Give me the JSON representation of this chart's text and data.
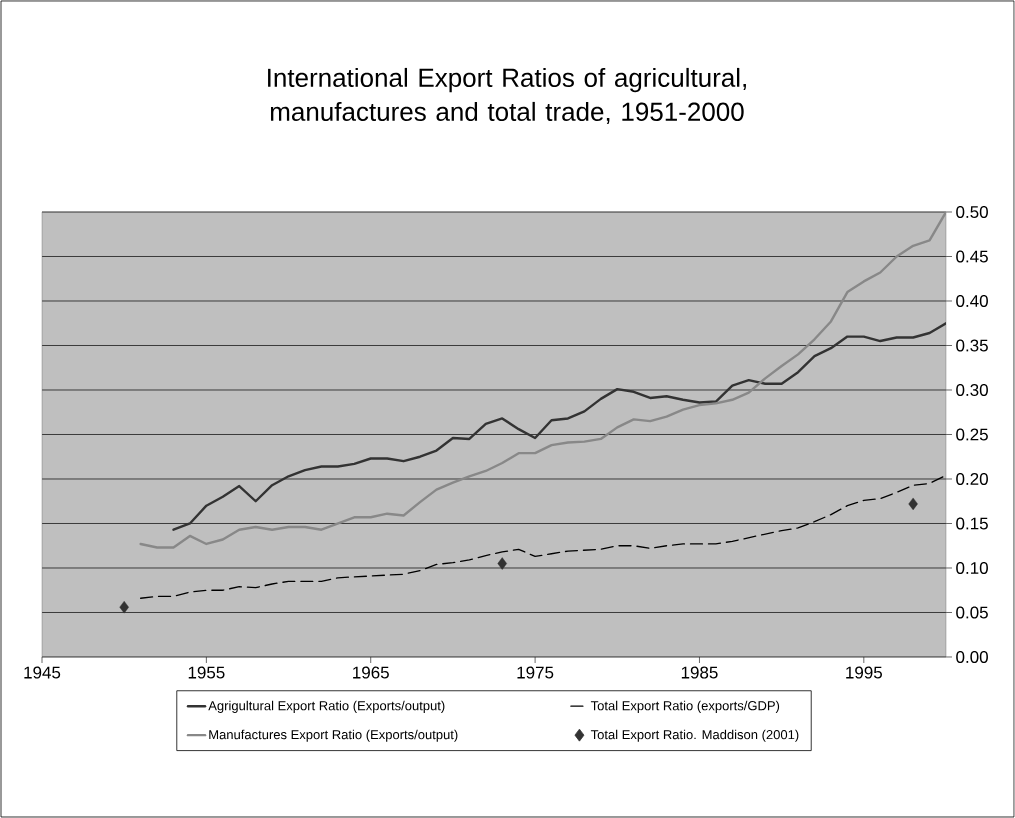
{
  "chart_data": {
    "type": "line",
    "title": "International Export Ratios of agricultural, manufactures and total trade, 1951-2000",
    "xlim": [
      1945,
      2000
    ],
    "xticks": [
      1945,
      1955,
      1965,
      1975,
      1985,
      1995
    ],
    "ylim": [
      0,
      0.5
    ],
    "yticks": [
      {
        "value": 0,
        "label": "0.00"
      },
      {
        "value": 0.05,
        "label": "0.05"
      },
      {
        "value": 0.1,
        "label": "0.10"
      },
      {
        "value": 0.15,
        "label": "0.15"
      },
      {
        "value": 0.2,
        "label": "0.20"
      },
      {
        "value": 0.25,
        "label": "0.25"
      },
      {
        "value": 0.3,
        "label": "0.30"
      },
      {
        "value": 0.35,
        "label": "0.35"
      },
      {
        "value": 0.4,
        "label": "0.40"
      },
      {
        "value": 0.45,
        "label": "0.45"
      },
      {
        "value": 0.5,
        "label": "0.50"
      }
    ],
    "grid": "y",
    "legend": "bottom",
    "series": [
      {
        "name": "Agrigultural Export Ratio (Exports/output)",
        "color": "#333333",
        "line_style": "solid",
        "x": [
          1953,
          1954,
          1955,
          1956,
          1957,
          1958,
          1959,
          1960,
          1961,
          1962,
          1963,
          1964,
          1965,
          1966,
          1967,
          1968,
          1969,
          1970,
          1971,
          1972,
          1973,
          1974,
          1975,
          1976,
          1977,
          1978,
          1979,
          1980,
          1981,
          1982,
          1983,
          1984,
          1985,
          1986,
          1987,
          1988,
          1989,
          1990,
          1991,
          1992,
          1993,
          1994,
          1995,
          1996,
          1997,
          1998,
          1999,
          2000
        ],
        "values": [
          0.143,
          0.15,
          0.17,
          0.18,
          0.192,
          0.175,
          0.193,
          0.203,
          0.21,
          0.214,
          0.214,
          0.217,
          0.223,
          0.223,
          0.22,
          0.225,
          0.232,
          0.246,
          0.245,
          0.262,
          0.268,
          0.256,
          0.246,
          0.266,
          0.268,
          0.276,
          0.29,
          0.301,
          0.298,
          0.291,
          0.293,
          0.289,
          0.286,
          0.287,
          0.305,
          0.311,
          0.307,
          0.307,
          0.32,
          0.338,
          0.347,
          0.36,
          0.36,
          0.355,
          0.359,
          0.359,
          0.364,
          0.375
        ]
      },
      {
        "name": "Total Export Ratio (exports/GDP)",
        "color": "#000000",
        "line_style": "dashed",
        "x": [
          1951,
          1952,
          1953,
          1954,
          1955,
          1956,
          1957,
          1958,
          1959,
          1960,
          1961,
          1962,
          1963,
          1964,
          1965,
          1966,
          1967,
          1968,
          1969,
          1970,
          1971,
          1972,
          1973,
          1974,
          1975,
          1976,
          1977,
          1978,
          1979,
          1980,
          1981,
          1982,
          1983,
          1984,
          1985,
          1986,
          1987,
          1988,
          1989,
          1990,
          1991,
          1992,
          1993,
          1994,
          1995,
          1996,
          1997,
          1998,
          1999,
          2000
        ],
        "values": [
          0.066,
          0.068,
          0.068,
          0.073,
          0.075,
          0.075,
          0.079,
          0.078,
          0.082,
          0.085,
          0.085,
          0.085,
          0.089,
          0.09,
          0.091,
          0.092,
          0.093,
          0.097,
          0.104,
          0.106,
          0.109,
          0.114,
          0.118,
          0.121,
          0.113,
          0.116,
          0.119,
          0.12,
          0.121,
          0.125,
          0.125,
          0.122,
          0.125,
          0.127,
          0.127,
          0.127,
          0.13,
          0.134,
          0.138,
          0.142,
          0.145,
          0.152,
          0.16,
          0.17,
          0.176,
          0.178,
          0.185,
          0.193,
          0.195,
          0.204
        ]
      },
      {
        "name": "Manufactures Export Ratio (Exports/output)",
        "color": "#888888",
        "line_style": "solid",
        "x": [
          1951,
          1952,
          1953,
          1954,
          1955,
          1956,
          1957,
          1958,
          1959,
          1960,
          1961,
          1962,
          1963,
          1964,
          1965,
          1966,
          1967,
          1968,
          1969,
          1970,
          1971,
          1972,
          1973,
          1974,
          1975,
          1976,
          1977,
          1978,
          1979,
          1980,
          1981,
          1982,
          1983,
          1984,
          1985,
          1986,
          1987,
          1988,
          1989,
          1990,
          1991,
          1992,
          1993,
          1994,
          1995,
          1996,
          1997,
          1998,
          1999,
          2000
        ],
        "values": [
          0.127,
          0.123,
          0.123,
          0.136,
          0.127,
          0.132,
          0.143,
          0.146,
          0.143,
          0.146,
          0.146,
          0.143,
          0.15,
          0.157,
          0.157,
          0.161,
          0.159,
          0.174,
          0.188,
          0.196,
          0.203,
          0.209,
          0.218,
          0.229,
          0.229,
          0.238,
          0.241,
          0.242,
          0.245,
          0.258,
          0.267,
          0.265,
          0.27,
          0.278,
          0.283,
          0.285,
          0.289,
          0.297,
          0.313,
          0.327,
          0.34,
          0.357,
          0.377,
          0.41,
          0.422,
          0.432,
          0.45,
          0.462,
          0.468,
          0.5
        ]
      },
      {
        "name": "Total Export Ratio. Maddison (2001)",
        "type": "scatter",
        "color": "#333333",
        "marker": "diamond",
        "x": [
          1950,
          1973,
          1998
        ],
        "values": [
          0.056,
          0.105,
          0.172
        ]
      }
    ]
  }
}
